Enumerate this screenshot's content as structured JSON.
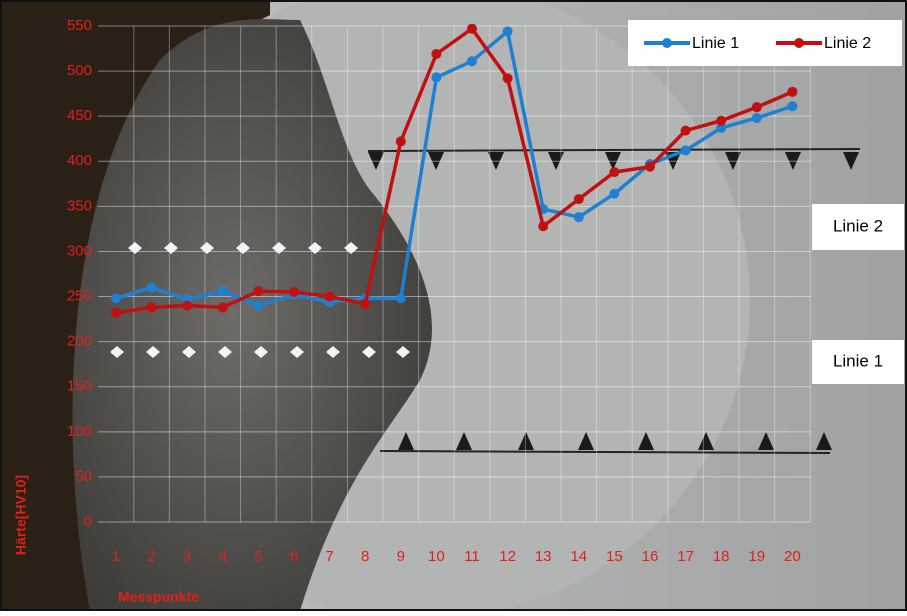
{
  "chart_data": {
    "type": "line",
    "x_label": "Messpunkte",
    "y_label": "Härte[HV10]",
    "categories": [
      "1",
      "2",
      "3",
      "4",
      "5",
      "6",
      "7",
      "8",
      "9",
      "10",
      "11",
      "12",
      "13",
      "14",
      "15",
      "16",
      "17",
      "18",
      "19",
      "20"
    ],
    "series": [
      {
        "name": "Linie 1",
        "color": "#1f7fd0",
        "values": [
          248,
          260,
          247,
          256,
          240,
          252,
          244,
          248,
          248,
          493,
          511,
          544,
          347,
          338,
          364,
          397,
          412,
          437,
          448,
          461
        ]
      },
      {
        "name": "Linie 2",
        "color": "#c01010",
        "values": [
          232,
          238,
          240,
          238,
          256,
          255,
          250,
          242,
          422,
          519,
          547,
          492,
          328,
          358,
          388,
          394,
          434,
          445,
          460,
          477
        ]
      }
    ],
    "ylim": [
      0,
      550
    ],
    "yticks": [
      0,
      50,
      100,
      150,
      200,
      250,
      300,
      350,
      400,
      450,
      500,
      550
    ],
    "grid": true,
    "annotations": [
      "Linie 2",
      "Linie 1"
    ]
  }
}
